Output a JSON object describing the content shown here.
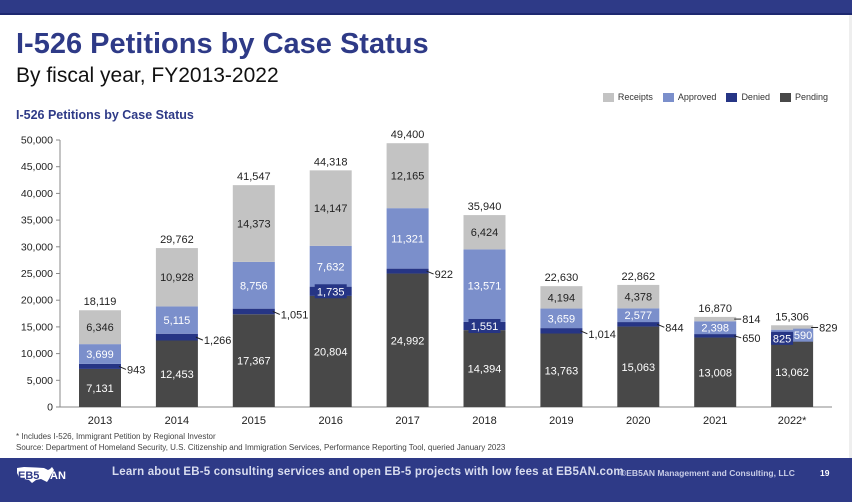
{
  "header": {
    "title": "I-526 Petitions by Case Status",
    "subtitle": "By fiscal year, FY2013-2022",
    "chart_heading": "I-526 Petitions by Case Status"
  },
  "legend": [
    {
      "name": "Receipts",
      "color": "#c3c3c3"
    },
    {
      "name": "Approved",
      "color": "#7b8fcb"
    },
    {
      "name": "Denied",
      "color": "#263585"
    },
    {
      "name": "Pending",
      "color": "#484848"
    }
  ],
  "chart_data": {
    "type": "bar",
    "stacked": true,
    "title": "I-526 Petitions by Case Status",
    "xlabel": "",
    "ylabel": "",
    "ylim": [
      0,
      50000
    ],
    "yticks": [
      0,
      5000,
      10000,
      15000,
      20000,
      25000,
      30000,
      35000,
      40000,
      45000,
      50000
    ],
    "ytick_labels": [
      "0",
      "5,000",
      "10,000",
      "15,000",
      "20,000",
      "25,000",
      "30,000",
      "35,000",
      "40,000",
      "45,000",
      "50,000"
    ],
    "grid": false,
    "legend_position": "top-right",
    "categories": [
      "2013",
      "2014",
      "2015",
      "2016",
      "2017",
      "2018",
      "2019",
      "2020",
      "2021",
      "2022*"
    ],
    "series": [
      {
        "name": "Pending",
        "color": "#484848",
        "values": [
          7131,
          12453,
          17367,
          20804,
          24992,
          14394,
          13763,
          15063,
          13008,
          13062
        ]
      },
      {
        "name": "Denied",
        "color": "#263585",
        "values": [
          943,
          1266,
          1051,
          1735,
          922,
          1551,
          1014,
          844,
          650,
          825
        ]
      },
      {
        "name": "Approved",
        "color": "#7b8fcb",
        "values": [
          3699,
          5115,
          8756,
          7632,
          11321,
          13571,
          3659,
          2577,
          2398,
          590
        ]
      },
      {
        "name": "Receipts",
        "color": "#c3c3c3",
        "values": [
          6346,
          10928,
          14373,
          14147,
          12165,
          6424,
          4194,
          4378,
          814,
          829
        ]
      }
    ],
    "totals": [
      18119,
      29762,
      41547,
      44318,
      49400,
      35940,
      22630,
      22862,
      16870,
      15306
    ],
    "total_labels": [
      "18,119",
      "29,762",
      "41,547",
      "44,318",
      "49,400",
      "35,940",
      "22,630",
      "22,862",
      "16,870",
      "15,306"
    ],
    "segment_labels": {
      "Pending": [
        "7,131",
        "12,453",
        "17,367",
        "20,804",
        "24,992",
        "14,394",
        "13,763",
        "15,063",
        "13,008",
        "13,062"
      ],
      "Denied": [
        "943",
        "1,266",
        "1,051",
        "1,735",
        "922",
        "1,551",
        "1,014",
        "844",
        "650",
        "825"
      ],
      "Approved": [
        "3,699",
        "5,115",
        "8,756",
        "7,632",
        "11,321",
        "13,571",
        "3,659",
        "2,577",
        "2,398",
        "590"
      ],
      "Receipts": [
        "6,346",
        "10,928",
        "14,373",
        "14,147",
        "12,165",
        "6,424",
        "4,194",
        "4,378",
        "814",
        "829"
      ]
    },
    "annotations": [
      "* Includes I-526, Immigrant Petition by Regional Investor"
    ]
  },
  "footnotes": {
    "note": "* Includes I-526, Immigrant Petition by Regional Investor",
    "source": "Source: Department of Homeland Security, U.S. Citizenship and Immigration Services, Performance Reporting Tool, queried January 2023"
  },
  "footer": {
    "logo_text": "EB5AN",
    "cta": "Learn about EB-5 consulting  services  and open EB-5 projects with low fees at EB5AN.com",
    "copyright": "©EB5AN  Management and Consulting,  LLC",
    "page_number": "19"
  }
}
